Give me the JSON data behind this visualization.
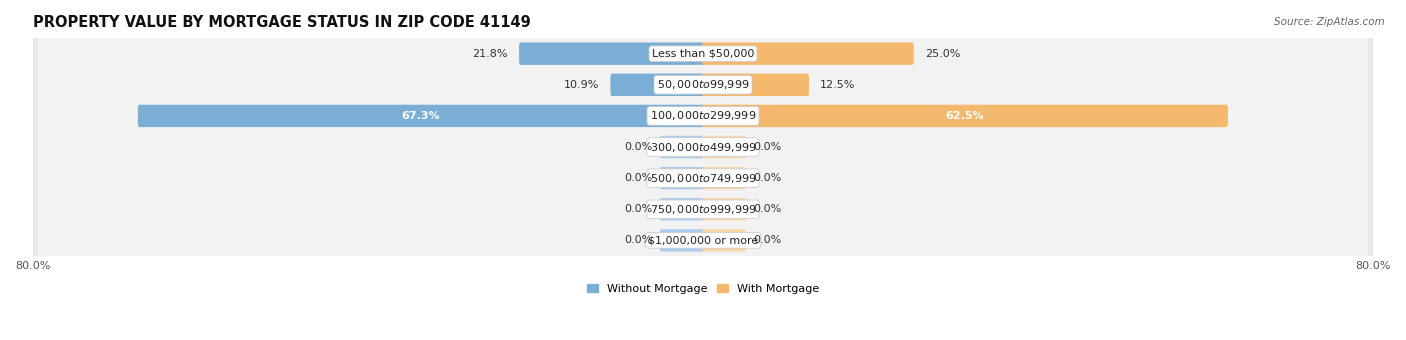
{
  "title": "PROPERTY VALUE BY MORTGAGE STATUS IN ZIP CODE 41149",
  "source": "Source: ZipAtlas.com",
  "categories": [
    "Less than $50,000",
    "$50,000 to $99,999",
    "$100,000 to $299,999",
    "$300,000 to $499,999",
    "$500,000 to $749,999",
    "$750,000 to $999,999",
    "$1,000,000 or more"
  ],
  "without_mortgage": [
    21.8,
    10.9,
    67.3,
    0.0,
    0.0,
    0.0,
    0.0
  ],
  "with_mortgage": [
    25.0,
    12.5,
    62.5,
    0.0,
    0.0,
    0.0,
    0.0
  ],
  "xlim": 80.0,
  "color_without": "#7aaed4",
  "color_with": "#f5b96e",
  "color_without_light": "#aaccee",
  "color_with_light": "#f8d8a8",
  "row_bg_color": "#e8e8e8",
  "row_inner_color": "#f2f2f2",
  "title_fontsize": 10.5,
  "label_fontsize": 8,
  "value_fontsize": 8,
  "axis_label_fontsize": 8,
  "legend_fontsize": 8,
  "source_fontsize": 7.5,
  "zero_bar_size": 5.0
}
